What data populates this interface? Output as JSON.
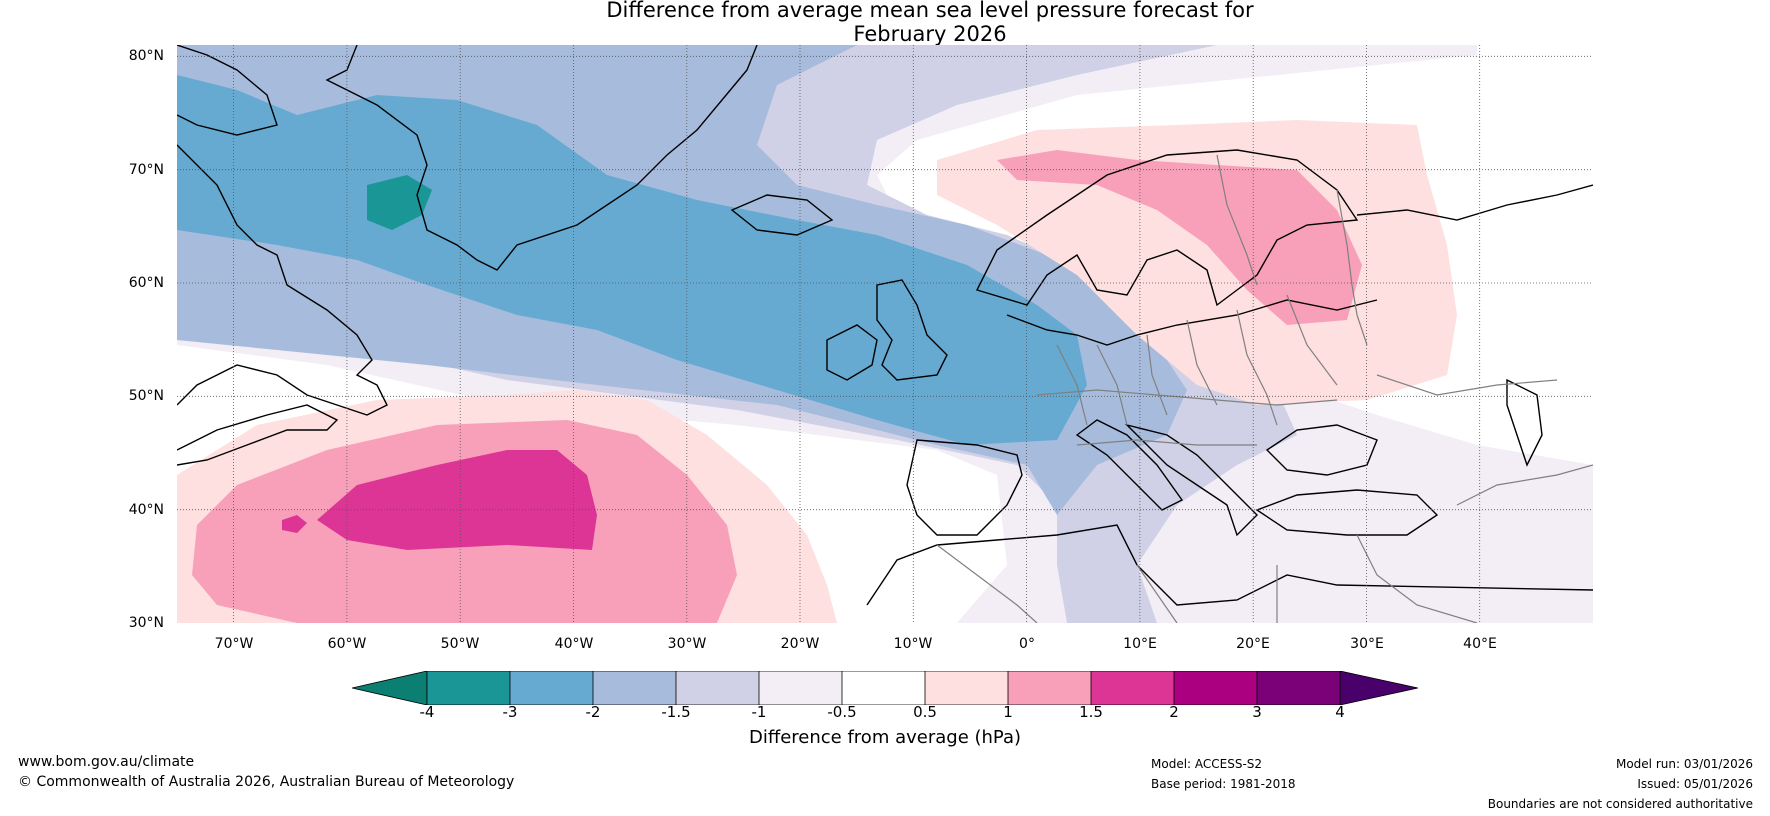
{
  "title": {
    "line1": "Difference from average mean sea level pressure forecast for",
    "line2": "February 2026"
  },
  "map": {
    "region": "North Atlantic and Europe",
    "lat_labels": [
      "80°N",
      "70°N",
      "60°N",
      "50°N",
      "40°N",
      "30°N"
    ],
    "lon_labels": [
      "70°W",
      "60°W",
      "50°W",
      "40°W",
      "30°W",
      "20°W",
      "10°W",
      "0°",
      "10°E",
      "20°E",
      "30°E",
      "40°E"
    ],
    "colors": {
      "neg_4": "#0b7f72",
      "neg_3": "#1a9696",
      "neg_2": "#66aad1",
      "neg_1_5": "#a7bcdc",
      "neg_1": "#d0d1e6",
      "neg_0_5": "#f3edf5",
      "neutral": "#ffffff",
      "pos_0_5": "#fde0df",
      "pos_1": "#f8a0ba",
      "pos_1_5": "#dd3596",
      "pos_2": "#ab0180",
      "pos_3": "#7a0177",
      "pos_4": "#49006a",
      "coast": "#000000",
      "border": "#808080"
    }
  },
  "colorbar": {
    "label": "Difference from average (hPa)",
    "ticks": [
      "-4",
      "-3",
      "-2",
      "-1.5",
      "-1",
      "-0.5",
      "0.5",
      "1",
      "1.5",
      "2",
      "3",
      "4"
    ]
  },
  "footer": {
    "website": "www.bom.gov.au/climate",
    "copyright": "© Commonwealth of Australia 2026, Australian Bureau of Meteorology",
    "model": "Model: ACCESS-S2",
    "base_period": "Base period: 1981-2018",
    "model_run": "Model run: 03/01/2026",
    "issued": "Issued: 05/01/2026",
    "disclaimer": "Boundaries are not considered authoritative"
  }
}
